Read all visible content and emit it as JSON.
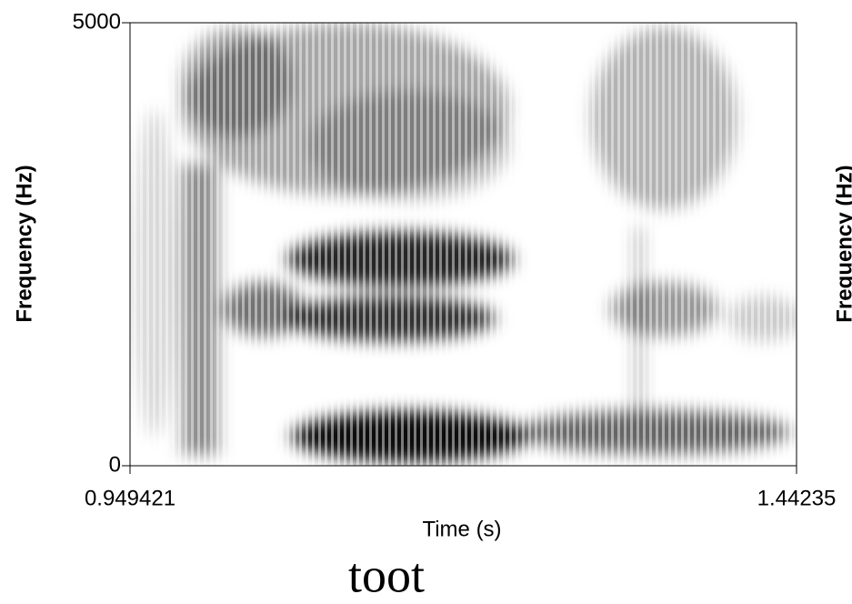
{
  "chart_data": {
    "type": "spectrogram",
    "xlabel": "Time (s)",
    "ylabel": "Frequency (Hz)",
    "y2label": "Frequency (Hz)",
    "caption": "toot",
    "xlim": [
      0.949421,
      1.44235
    ],
    "xticks": [
      0.949421,
      1.44235
    ],
    "ylim": [
      0,
      5000
    ],
    "yticks": [
      0,
      5000
    ],
    "color": "#000000"
  }
}
